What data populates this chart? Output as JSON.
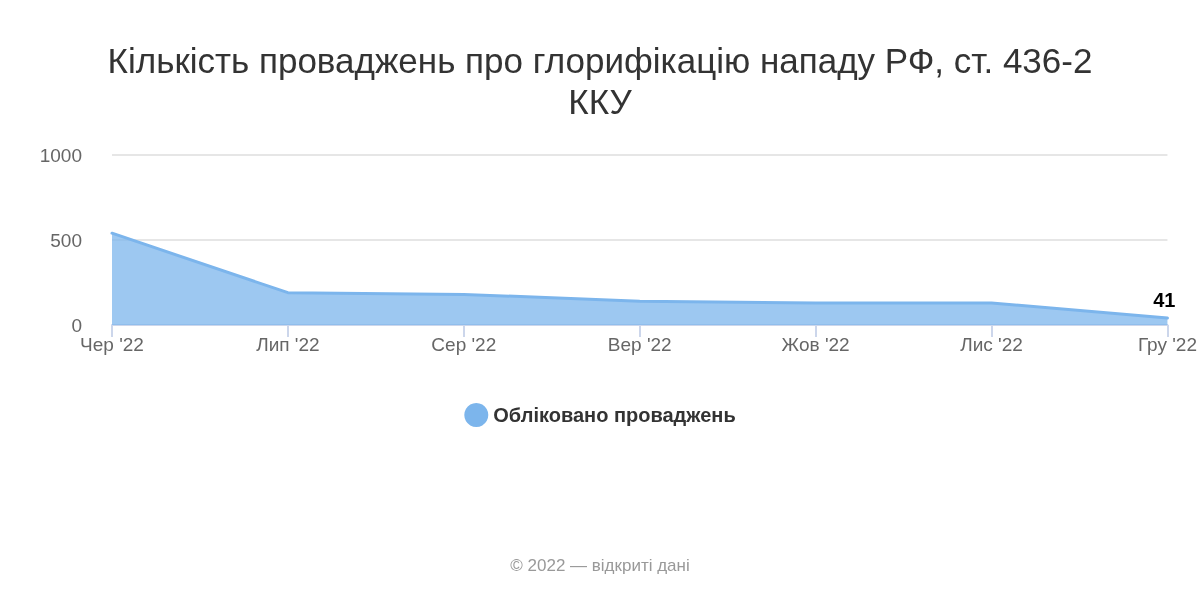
{
  "chart_data": {
    "type": "area",
    "title": "Кількість проваджень про глорифікацію нападу РФ, ст. 436-2 ККУ",
    "categories": [
      "Чер '22",
      "Лип '22",
      "Сер '22",
      "Вер '22",
      "Жов '22",
      "Лис '22",
      "Гру '22"
    ],
    "series": [
      {
        "name": "Обліковано проваджень",
        "color": "#7cb5ec",
        "values": [
          540,
          190,
          180,
          140,
          130,
          130,
          41
        ],
        "value_labels": [
          null,
          null,
          null,
          null,
          null,
          null,
          "41"
        ]
      }
    ],
    "ylim": [
      0,
      1000
    ],
    "yticks": [
      0,
      500,
      1000
    ],
    "grid": "y",
    "legend": "bottom",
    "marker": "none",
    "annotations": [
      "© 2022 — відкриті дані"
    ]
  }
}
